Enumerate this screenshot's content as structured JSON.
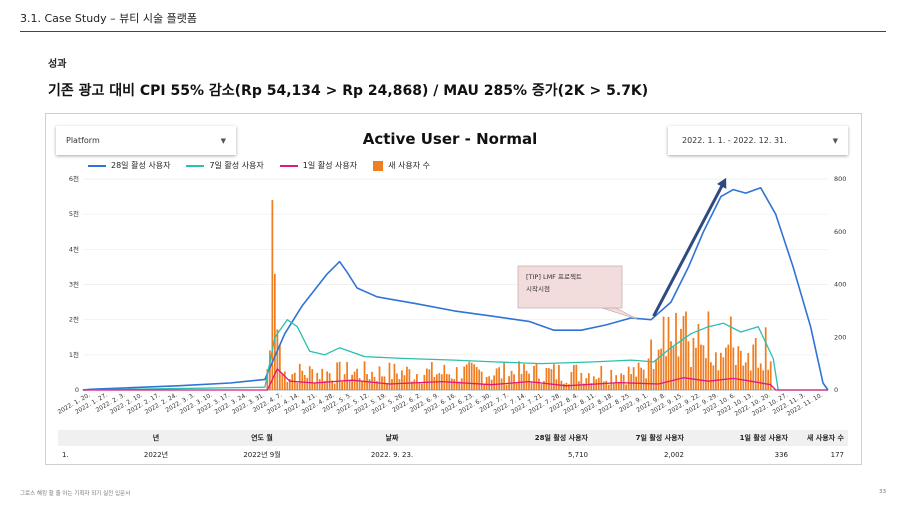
{
  "header": {
    "title": "3.1. Case Study – 뷰티 시술 플랫폼"
  },
  "section": {
    "label": "성과"
  },
  "headline": "기존 광고 대비 CPI 55% 감소(Rp 54,134 > Rp 24,868) / MAU 285% 증가(2K > 5.7K)",
  "controls": {
    "platform_label": "Platform",
    "date_range_label": "2022. 1. 1. - 2022. 12. 31."
  },
  "annotation": {
    "line1": "[TIP] LMF 프로젝트",
    "line2": "시작시점"
  },
  "colors": {
    "u28": "#2f73d6",
    "u7": "#2bbfae",
    "u1": "#e0197b",
    "new": "#ef7d22",
    "arrow": "#2e4a7e"
  },
  "chart_data": {
    "type": "line",
    "title": "Active User - Normal",
    "legend": [
      "28일 활성 사용자",
      "7일 활성 사용자",
      "1일 활성 사용자",
      "새 사용자 수"
    ],
    "legend_position": "top-left",
    "y_left_ticks": [
      "0",
      "1천",
      "2천",
      "3천",
      "4천",
      "5천",
      "6천"
    ],
    "y_left_range": [
      0,
      6000
    ],
    "y_right_ticks": [
      "0",
      "200",
      "400",
      "600",
      "800"
    ],
    "y_right_range": [
      0,
      800
    ],
    "x_ticks": [
      "2022. 1. 20.",
      "2022. 1. 27.",
      "2022. 2. 3.",
      "2022. 2. 10.",
      "2022. 2. 17.",
      "2022. 2. 24.",
      "2022. 3. 3.",
      "2022. 3. 10.",
      "2022. 3. 17.",
      "2022. 3. 24.",
      "2022. 3. 31.",
      "2022. 4. 7.",
      "2022. 4. 14.",
      "2022. 4. 21.",
      "2022. 4. 28.",
      "2022. 5. 5.",
      "2022. 5. 12.",
      "2022. 5. 19.",
      "2022. 5. 26.",
      "2022. 6. 2.",
      "2022. 6. 9.",
      "2022. 6. 16.",
      "2022. 6. 23.",
      "2022. 6. 30.",
      "2022. 7. 7.",
      "2022. 7. 14.",
      "2022. 7. 21.",
      "2022. 7. 28.",
      "2022. 8. 4.",
      "2022. 8. 11.",
      "2022. 8. 18.",
      "2022. 8. 25.",
      "2022. 9. 1.",
      "2022. 9. 8.",
      "2022. 9. 15.",
      "2022. 9. 22.",
      "2022. 9. 29.",
      "2022. 10. 6.",
      "2022. 10. 13.",
      "2022. 10. 20.",
      "2022. 10. 27.",
      "2022. 11. 3.",
      "2022. 11. 10."
    ],
    "x_range": [
      "2022-01-17",
      "2022-11-12"
    ],
    "series": [
      {
        "name": "28일 활성 사용자",
        "axis": "left",
        "points": [
          [
            "2022-01-17",
            0
          ],
          [
            "2022-01-20",
            20
          ],
          [
            "2022-02-03",
            60
          ],
          [
            "2022-02-24",
            120
          ],
          [
            "2022-03-17",
            200
          ],
          [
            "2022-03-31",
            300
          ],
          [
            "2022-04-03",
            800
          ],
          [
            "2022-04-08",
            1600
          ],
          [
            "2022-04-15",
            2400
          ],
          [
            "2022-04-25",
            3300
          ],
          [
            "2022-04-30",
            3650
          ],
          [
            "2022-05-03",
            3350
          ],
          [
            "2022-05-07",
            2900
          ],
          [
            "2022-05-15",
            2650
          ],
          [
            "2022-05-31",
            2450
          ],
          [
            "2022-06-15",
            2250
          ],
          [
            "2022-06-30",
            2100
          ],
          [
            "2022-07-15",
            1950
          ],
          [
            "2022-07-25",
            1700
          ],
          [
            "2022-08-05",
            1700
          ],
          [
            "2022-08-15",
            1850
          ],
          [
            "2022-08-25",
            2050
          ],
          [
            "2022-09-02",
            2000
          ],
          [
            "2022-09-10",
            2500
          ],
          [
            "2022-09-17",
            3500
          ],
          [
            "2022-09-23",
            4500
          ],
          [
            "2022-09-30",
            5500
          ],
          [
            "2022-10-05",
            5700
          ],
          [
            "2022-10-10",
            5600
          ],
          [
            "2022-10-16",
            5750
          ],
          [
            "2022-10-22",
            5000
          ],
          [
            "2022-10-29",
            3500
          ],
          [
            "2022-11-05",
            1800
          ],
          [
            "2022-11-10",
            200
          ],
          [
            "2022-11-12",
            0
          ]
        ]
      },
      {
        "name": "7일 활성 사용자",
        "axis": "left",
        "points": [
          [
            "2022-01-17",
            0
          ],
          [
            "2022-03-31",
            80
          ],
          [
            "2022-04-04",
            1500
          ],
          [
            "2022-04-09",
            2000
          ],
          [
            "2022-04-13",
            1800
          ],
          [
            "2022-04-18",
            1100
          ],
          [
            "2022-04-24",
            1000
          ],
          [
            "2022-04-30",
            1200
          ],
          [
            "2022-05-10",
            950
          ],
          [
            "2022-05-25",
            900
          ],
          [
            "2022-06-15",
            850
          ],
          [
            "2022-07-01",
            800
          ],
          [
            "2022-07-20",
            750
          ],
          [
            "2022-08-10",
            800
          ],
          [
            "2022-08-25",
            850
          ],
          [
            "2022-09-03",
            800
          ],
          [
            "2022-09-10",
            1200
          ],
          [
            "2022-09-18",
            1600
          ],
          [
            "2022-09-25",
            1800
          ],
          [
            "2022-10-01",
            1900
          ],
          [
            "2022-10-08",
            1650
          ],
          [
            "2022-10-15",
            1800
          ],
          [
            "2022-10-21",
            900
          ],
          [
            "2022-10-23",
            0
          ],
          [
            "2022-11-12",
            0
          ]
        ]
      },
      {
        "name": "1일 활성 사용자",
        "axis": "left",
        "points": [
          [
            "2022-01-17",
            0
          ],
          [
            "2022-04-01",
            0
          ],
          [
            "2022-04-05",
            600
          ],
          [
            "2022-04-10",
            250
          ],
          [
            "2022-04-20",
            200
          ],
          [
            "2022-05-05",
            280
          ],
          [
            "2022-05-20",
            170
          ],
          [
            "2022-06-10",
            240
          ],
          [
            "2022-06-30",
            150
          ],
          [
            "2022-07-15",
            240
          ],
          [
            "2022-07-30",
            120
          ],
          [
            "2022-08-20",
            210
          ],
          [
            "2022-09-05",
            170
          ],
          [
            "2022-09-15",
            350
          ],
          [
            "2022-09-25",
            250
          ],
          [
            "2022-10-05",
            330
          ],
          [
            "2022-10-12",
            250
          ],
          [
            "2022-10-20",
            150
          ],
          [
            "2022-10-22",
            0
          ],
          [
            "2022-11-12",
            0
          ]
        ]
      },
      {
        "name": "새 사용자 수",
        "axis": "right",
        "type": "bar",
        "daily_values": {
          "2022-01-17_to_2022-03-31": 2,
          "2022-04-01": 80,
          "2022-04-02": 150,
          "2022-04-03": 720,
          "2022-04-04": 440,
          "2022-04-05": 230,
          "2022-04-06": 170,
          "2022-04-07_to_2022-08-31": "20-110 (avg ~55)",
          "2022-09-01_to_2022-10-20": "70-300 (avg ~150)",
          "2022-10-21_to_2022-11-10": 0
        }
      }
    ]
  },
  "table": {
    "headers": [
      "년",
      "연도 월",
      "날짜",
      "28일 활성 사용자",
      "7일 활성 사용자",
      "1일 활성 사용자",
      "새 사용자 수"
    ],
    "rows": [
      [
        "1.",
        "2022년",
        "2022년 9월",
        "2022. 9. 23.",
        "5,710",
        "2,002",
        "336",
        "177"
      ]
    ]
  },
  "footer": {
    "left": "그로스 해킹 할 줄 아는 기획자 되기 실전 입문서",
    "page": "33"
  }
}
